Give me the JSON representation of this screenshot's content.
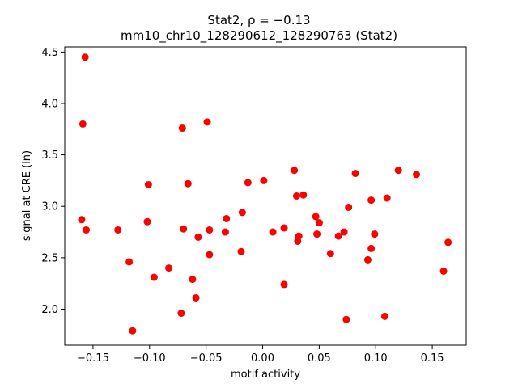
{
  "chart_data": {
    "type": "scatter",
    "title_line1": "Stat2, ρ = −0.13",
    "title_line2": "mm10_chr10_128290612_128290763 (Stat2)",
    "xlabel": "motif activity",
    "ylabel": "signal at CRE (ln)",
    "xlim": [
      -0.175,
      0.18
    ],
    "ylim": [
      1.65,
      4.55
    ],
    "xticks": [
      -0.15,
      -0.1,
      -0.05,
      0.0,
      0.05,
      0.1,
      0.15
    ],
    "xtick_labels": [
      "−0.15",
      "−0.10",
      "−0.05",
      "0.00",
      "0.05",
      "0.10",
      "0.15"
    ],
    "yticks": [
      2.0,
      2.5,
      3.0,
      3.5,
      4.0,
      4.5
    ],
    "ytick_labels": [
      "2.0",
      "2.5",
      "3.0",
      "3.5",
      "4.0",
      "4.5"
    ],
    "grid": false,
    "marker_color": "#ff0000",
    "points": [
      {
        "x": -0.157,
        "y": 4.45
      },
      {
        "x": -0.159,
        "y": 3.8
      },
      {
        "x": -0.16,
        "y": 2.87
      },
      {
        "x": -0.156,
        "y": 2.77
      },
      {
        "x": -0.128,
        "y": 2.77
      },
      {
        "x": -0.118,
        "y": 2.46
      },
      {
        "x": -0.115,
        "y": 1.79
      },
      {
        "x": -0.101,
        "y": 3.21
      },
      {
        "x": -0.102,
        "y": 2.85
      },
      {
        "x": -0.096,
        "y": 2.31
      },
      {
        "x": -0.083,
        "y": 2.4
      },
      {
        "x": -0.071,
        "y": 3.76
      },
      {
        "x": -0.07,
        "y": 2.78
      },
      {
        "x": -0.072,
        "y": 1.96
      },
      {
        "x": -0.066,
        "y": 3.22
      },
      {
        "x": -0.062,
        "y": 2.29
      },
      {
        "x": -0.059,
        "y": 2.11
      },
      {
        "x": -0.057,
        "y": 2.7
      },
      {
        "x": -0.049,
        "y": 3.82
      },
      {
        "x": -0.047,
        "y": 2.77
      },
      {
        "x": -0.047,
        "y": 2.53
      },
      {
        "x": -0.032,
        "y": 2.88
      },
      {
        "x": -0.033,
        "y": 2.75
      },
      {
        "x": -0.018,
        "y": 2.94
      },
      {
        "x": -0.019,
        "y": 2.56
      },
      {
        "x": -0.013,
        "y": 3.23
      },
      {
        "x": 0.001,
        "y": 3.25
      },
      {
        "x": 0.009,
        "y": 2.75
      },
      {
        "x": 0.019,
        "y": 2.79
      },
      {
        "x": 0.019,
        "y": 2.24
      },
      {
        "x": 0.028,
        "y": 3.35
      },
      {
        "x": 0.03,
        "y": 3.1
      },
      {
        "x": 0.032,
        "y": 2.71
      },
      {
        "x": 0.031,
        "y": 2.66
      },
      {
        "x": 0.036,
        "y": 3.11
      },
      {
        "x": 0.047,
        "y": 2.9
      },
      {
        "x": 0.05,
        "y": 2.84
      },
      {
        "x": 0.048,
        "y": 2.73
      },
      {
        "x": 0.06,
        "y": 2.54
      },
      {
        "x": 0.067,
        "y": 2.71
      },
      {
        "x": 0.072,
        "y": 2.75
      },
      {
        "x": 0.076,
        "y": 2.99
      },
      {
        "x": 0.074,
        "y": 1.9
      },
      {
        "x": 0.082,
        "y": 3.32
      },
      {
        "x": 0.093,
        "y": 2.48
      },
      {
        "x": 0.096,
        "y": 3.06
      },
      {
        "x": 0.096,
        "y": 2.59
      },
      {
        "x": 0.099,
        "y": 2.73
      },
      {
        "x": 0.108,
        "y": 1.93
      },
      {
        "x": 0.11,
        "y": 3.08
      },
      {
        "x": 0.12,
        "y": 3.35
      },
      {
        "x": 0.136,
        "y": 3.31
      },
      {
        "x": 0.16,
        "y": 2.37
      },
      {
        "x": 0.164,
        "y": 2.65
      }
    ]
  }
}
